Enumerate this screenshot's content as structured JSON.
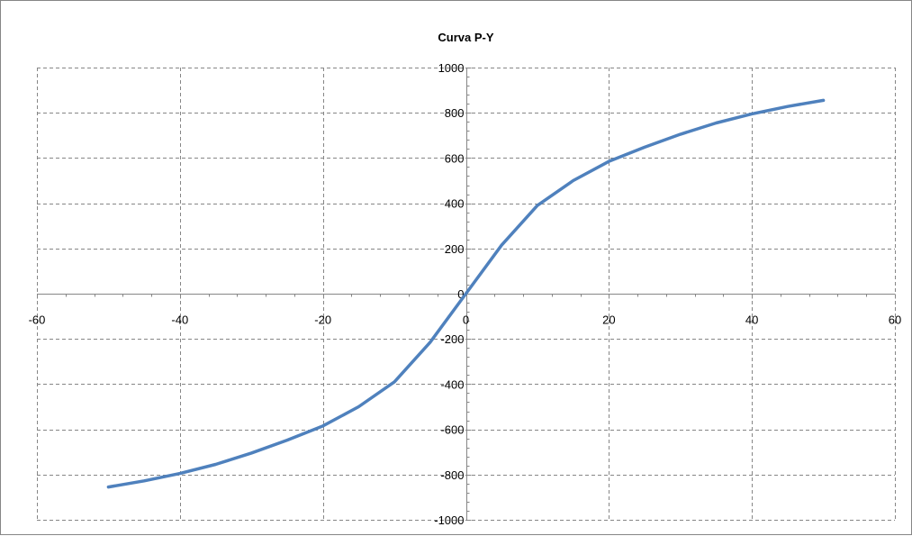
{
  "chart_data": {
    "type": "line",
    "title": "Curva P-Y",
    "xlabel": "",
    "ylabel": "",
    "xlim": [
      -60,
      60
    ],
    "ylim": [
      -1000,
      1000
    ],
    "x_ticks": [
      -60,
      -40,
      -20,
      0,
      20,
      40,
      60
    ],
    "y_ticks": [
      -1000,
      -800,
      -600,
      -400,
      -200,
      0,
      200,
      400,
      600,
      800,
      1000
    ],
    "grid": true,
    "legend": "none",
    "series": [
      {
        "color": "#4f81bd",
        "x": [
          -50,
          -45,
          -40,
          -35,
          -30,
          -25,
          -20,
          -15,
          -10,
          -5,
          0,
          5,
          10,
          15,
          20,
          25,
          30,
          35,
          40,
          45,
          50
        ],
        "y": [
          -855,
          -828,
          -795,
          -755,
          -705,
          -648,
          -585,
          -500,
          -390,
          -215,
          0,
          215,
          390,
          500,
          585,
          648,
          705,
          755,
          795,
          828,
          855
        ]
      }
    ]
  }
}
